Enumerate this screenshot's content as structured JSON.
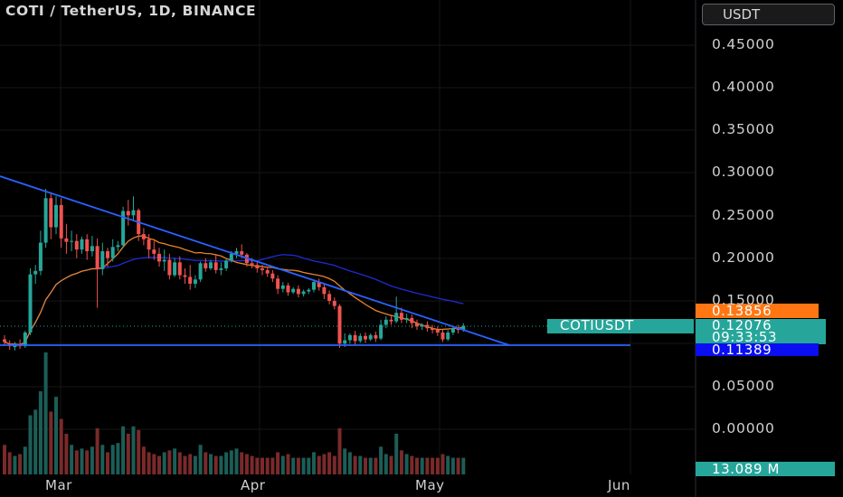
{
  "header": {
    "title": "COTI / TetherUS, 1D, BINANCE"
  },
  "currency_selector": {
    "label": "USDT"
  },
  "colors": {
    "up": "#26a69a",
    "down": "#ef5350",
    "trendline": "#2962ff",
    "ma_orange": "#e8832a",
    "ma_blue": "#1e2bd6",
    "grid": "#161616"
  },
  "price_tags": {
    "symbol": "COTIUSDT",
    "last_price": "0.12076",
    "countdown": "09:33:53",
    "ma_orange_value": "0.13856",
    "ma_blue_value": "0.11389",
    "volume_value": "13.089 M"
  },
  "chart_data": {
    "type": "candlestick",
    "title": "COTI / TetherUS, 1D, BINANCE",
    "y_axis": {
      "ticks": [
        "0.45000",
        "0.40000",
        "0.35000",
        "0.30000",
        "0.25000",
        "0.20000",
        "0.15000",
        "0.05000",
        "0.00000"
      ],
      "ylim": [
        -0.05,
        0.5
      ]
    },
    "x_axis": {
      "ticks": [
        "Mar",
        "Apr",
        "May",
        "Jun"
      ]
    },
    "candles": [
      [
        0.105,
        0.11,
        0.102,
        0.098
      ],
      [
        0.1,
        0.104,
        0.097,
        0.093
      ],
      [
        0.096,
        0.102,
        0.099,
        0.092
      ],
      [
        0.099,
        0.105,
        0.097,
        0.094
      ],
      [
        0.097,
        0.115,
        0.113,
        0.095
      ],
      [
        0.113,
        0.188,
        0.181,
        0.11
      ],
      [
        0.181,
        0.192,
        0.185,
        0.17
      ],
      [
        0.185,
        0.232,
        0.218,
        0.18
      ],
      [
        0.218,
        0.281,
        0.27,
        0.212
      ],
      [
        0.27,
        0.277,
        0.236,
        0.222
      ],
      [
        0.236,
        0.272,
        0.262,
        0.228
      ],
      [
        0.262,
        0.27,
        0.223,
        0.212
      ],
      [
        0.223,
        0.24,
        0.219,
        0.205
      ],
      [
        0.219,
        0.232,
        0.22,
        0.208
      ],
      [
        0.22,
        0.228,
        0.21,
        0.2
      ],
      [
        0.21,
        0.225,
        0.222,
        0.205
      ],
      [
        0.222,
        0.228,
        0.208,
        0.198
      ],
      [
        0.208,
        0.226,
        0.214,
        0.202
      ],
      [
        0.214,
        0.223,
        0.187,
        0.142
      ],
      [
        0.187,
        0.218,
        0.208,
        0.18
      ],
      [
        0.208,
        0.212,
        0.2,
        0.19
      ],
      [
        0.2,
        0.222,
        0.213,
        0.196
      ],
      [
        0.213,
        0.22,
        0.215,
        0.208
      ],
      [
        0.215,
        0.26,
        0.255,
        0.212
      ],
      [
        0.255,
        0.268,
        0.25,
        0.238
      ],
      [
        0.25,
        0.272,
        0.256,
        0.244
      ],
      [
        0.256,
        0.258,
        0.228,
        0.22
      ],
      [
        0.228,
        0.235,
        0.222,
        0.215
      ],
      [
        0.222,
        0.228,
        0.21,
        0.2
      ],
      [
        0.21,
        0.22,
        0.205,
        0.198
      ],
      [
        0.205,
        0.212,
        0.196,
        0.19
      ],
      [
        0.196,
        0.21,
        0.198,
        0.185
      ],
      [
        0.198,
        0.205,
        0.18,
        0.175
      ],
      [
        0.18,
        0.2,
        0.195,
        0.178
      ],
      [
        0.195,
        0.202,
        0.18,
        0.175
      ],
      [
        0.18,
        0.188,
        0.178,
        0.17
      ],
      [
        0.178,
        0.192,
        0.17,
        0.163
      ],
      [
        0.17,
        0.18,
        0.175,
        0.165
      ],
      [
        0.175,
        0.196,
        0.194,
        0.172
      ],
      [
        0.194,
        0.2,
        0.188,
        0.184
      ],
      [
        0.188,
        0.198,
        0.195,
        0.186
      ],
      [
        0.195,
        0.205,
        0.186,
        0.182
      ],
      [
        0.186,
        0.195,
        0.188,
        0.18
      ],
      [
        0.188,
        0.2,
        0.197,
        0.185
      ],
      [
        0.197,
        0.208,
        0.205,
        0.195
      ],
      [
        0.205,
        0.212,
        0.208,
        0.2
      ],
      [
        0.208,
        0.216,
        0.204,
        0.2
      ],
      [
        0.204,
        0.206,
        0.194,
        0.19
      ],
      [
        0.194,
        0.2,
        0.192,
        0.188
      ],
      [
        0.192,
        0.196,
        0.188,
        0.183
      ],
      [
        0.188,
        0.192,
        0.186,
        0.18
      ],
      [
        0.186,
        0.19,
        0.182,
        0.178
      ],
      [
        0.182,
        0.186,
        0.176,
        0.172
      ],
      [
        0.176,
        0.18,
        0.164,
        0.158
      ],
      [
        0.164,
        0.172,
        0.168,
        0.16
      ],
      [
        0.168,
        0.171,
        0.16,
        0.156
      ],
      [
        0.16,
        0.166,
        0.164,
        0.158
      ],
      [
        0.164,
        0.168,
        0.158,
        0.154
      ],
      [
        0.158,
        0.163,
        0.161,
        0.155
      ],
      [
        0.161,
        0.165,
        0.163,
        0.158
      ],
      [
        0.163,
        0.175,
        0.172,
        0.16
      ],
      [
        0.172,
        0.176,
        0.166,
        0.162
      ],
      [
        0.166,
        0.17,
        0.158,
        0.152
      ],
      [
        0.158,
        0.162,
        0.15,
        0.146
      ],
      [
        0.15,
        0.154,
        0.144,
        0.14
      ],
      [
        0.144,
        0.146,
        0.1,
        0.095
      ],
      [
        0.1,
        0.112,
        0.104,
        0.096
      ],
      [
        0.104,
        0.112,
        0.11,
        0.1
      ],
      [
        0.11,
        0.115,
        0.103,
        0.099
      ],
      [
        0.103,
        0.112,
        0.109,
        0.101
      ],
      [
        0.109,
        0.113,
        0.105,
        0.101
      ],
      [
        0.105,
        0.112,
        0.11,
        0.103
      ],
      [
        0.11,
        0.114,
        0.106,
        0.102
      ],
      [
        0.106,
        0.128,
        0.122,
        0.104
      ],
      [
        0.122,
        0.132,
        0.128,
        0.118
      ],
      [
        0.128,
        0.134,
        0.126,
        0.122
      ],
      [
        0.126,
        0.155,
        0.136,
        0.124
      ],
      [
        0.136,
        0.142,
        0.128,
        0.124
      ],
      [
        0.128,
        0.135,
        0.13,
        0.124
      ],
      [
        0.13,
        0.134,
        0.124,
        0.118
      ],
      [
        0.124,
        0.128,
        0.12,
        0.116
      ],
      [
        0.12,
        0.124,
        0.122,
        0.116
      ],
      [
        0.122,
        0.126,
        0.118,
        0.114
      ],
      [
        0.118,
        0.122,
        0.116,
        0.112
      ],
      [
        0.116,
        0.12,
        0.113,
        0.109
      ],
      [
        0.113,
        0.116,
        0.105,
        0.102
      ],
      [
        0.105,
        0.116,
        0.113,
        0.103
      ],
      [
        0.113,
        0.12,
        0.118,
        0.11
      ],
      [
        0.118,
        0.122,
        0.116,
        0.112
      ],
      [
        0.116,
        0.124,
        0.121,
        0.114
      ]
    ],
    "volumes": [
      1.6,
      1.2,
      1.0,
      1.1,
      1.5,
      3.2,
      3.5,
      4.5,
      6.6,
      3.4,
      4.2,
      3.0,
      2.2,
      1.6,
      1.3,
      1.4,
      1.3,
      1.5,
      2.5,
      1.6,
      1.2,
      1.6,
      1.7,
      2.6,
      2.2,
      2.6,
      2.4,
      1.5,
      1.2,
      1.1,
      1.0,
      1.2,
      1.3,
      1.4,
      1.2,
      1.0,
      1.1,
      1.0,
      1.6,
      1.2,
      1.1,
      1.0,
      1.0,
      1.2,
      1.3,
      1.4,
      1.2,
      1.1,
      1.0,
      0.9,
      0.9,
      0.9,
      0.9,
      1.2,
      1.0,
      1.1,
      0.9,
      0.9,
      0.9,
      0.9,
      1.2,
      1.0,
      1.1,
      1.2,
      1.0,
      2.5,
      1.4,
      1.2,
      1.0,
      1.0,
      0.9,
      0.9,
      0.9,
      1.5,
      1.1,
      1.0,
      2.2,
      1.3,
      1.1,
      1.0,
      0.9,
      0.9,
      0.9,
      0.9,
      0.9,
      1.1,
      1.0,
      0.9,
      0.9,
      0.9
    ]
  }
}
